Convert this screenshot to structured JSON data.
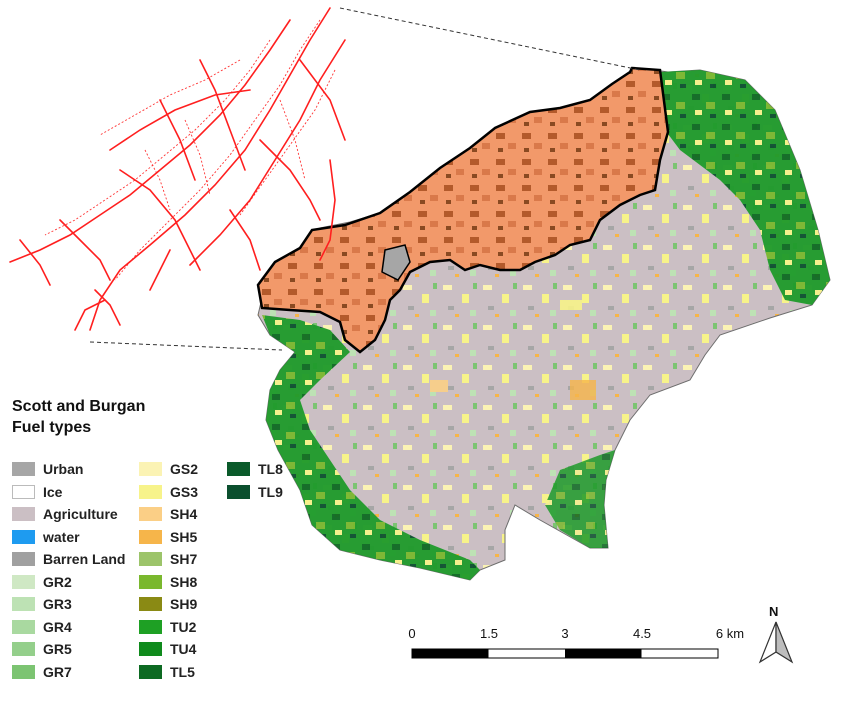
{
  "legend": {
    "title_line1": "Scott and Burgan",
    "title_line2": "Fuel types",
    "col1": [
      {
        "label": "Urban",
        "color": "#a6a6a6"
      },
      {
        "label": "Ice",
        "color": "#ffffff"
      },
      {
        "label": "Agriculture",
        "color": "#cbbfc4"
      },
      {
        "label": "water",
        "color": "#1e9bf0"
      },
      {
        "label": "Barren Land",
        "color": "#a0a0a0"
      },
      {
        "label": "GR2",
        "color": "#cfe8c4"
      },
      {
        "label": "GR3",
        "color": "#bde2b4"
      },
      {
        "label": "GR4",
        "color": "#a9d9a0"
      },
      {
        "label": "GR5",
        "color": "#94cf8b"
      },
      {
        "label": "GR7",
        "color": "#7cc472"
      }
    ],
    "col2": [
      {
        "label": "GS2",
        "color": "#fbf3b4"
      },
      {
        "label": "GS3",
        "color": "#f7f38a"
      },
      {
        "label": "SH4",
        "color": "#fbcf86"
      },
      {
        "label": "SH5",
        "color": "#f6b54a"
      },
      {
        "label": "SH7",
        "color": "#9cc46a"
      },
      {
        "label": "SH8",
        "color": "#7ab82e"
      },
      {
        "label": "SH9",
        "color": "#8a8a14"
      },
      {
        "label": "TU2",
        "color": "#1ea024"
      },
      {
        "label": "TU4",
        "color": "#0f8a1c"
      },
      {
        "label": "TL5",
        "color": "#0d6a22"
      }
    ],
    "col3": [
      {
        "label": "TL8",
        "color": "#0a5a2a"
      },
      {
        "label": "TL9",
        "color": "#0b4f2e"
      }
    ]
  },
  "scale_bar": {
    "ticks": [
      "0",
      "1.5",
      "3",
      "4.5",
      "6 km"
    ]
  },
  "north_arrow": {
    "label": "N",
    "icon": "north-arrow-icon"
  },
  "colors": {
    "burned_area": "#f2996a",
    "burned_dark": "#b35a2b",
    "network": "#ff1f1f",
    "agriculture": "#cbbfc4",
    "forest": "#1c8a2a"
  }
}
